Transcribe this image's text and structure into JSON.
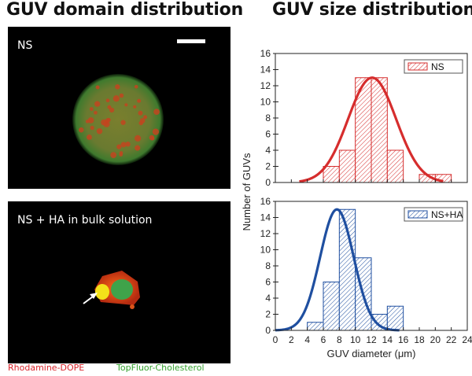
{
  "titles": {
    "left": "GUV domain distribution",
    "right": "GUV size distribution"
  },
  "micrographs": {
    "top_label": "NS",
    "bottom_label": "NS + HA in bulk solution",
    "stain_red": "Rhodamine-DOPE",
    "stain_green": "TopFluor-Cholesterol",
    "stain_red_color": "#d9232a",
    "stain_green_color": "#33a02c"
  },
  "chart_data": [
    {
      "type": "bar",
      "series": [
        {
          "name": "NS",
          "values": [
            0,
            0,
            0,
            2,
            4,
            13,
            13,
            4,
            0,
            1,
            1
          ]
        }
      ],
      "bin_edges": [
        0,
        2,
        4,
        6,
        8,
        10,
        12,
        14,
        16,
        18,
        20,
        22
      ],
      "fit": {
        "type": "gaussian",
        "center": 12.1,
        "sigma": 3.0,
        "peak": 13,
        "x_range": [
          3,
          21
        ]
      },
      "color": "#d62d2d",
      "ylim": [
        0,
        16
      ],
      "yticks": [
        0,
        2,
        4,
        6,
        8,
        10,
        12,
        14,
        16
      ],
      "legend": "top-right"
    },
    {
      "type": "bar",
      "series": [
        {
          "name": "NS+HA",
          "values": [
            0,
            0,
            1,
            6,
            15,
            9,
            2,
            3,
            0,
            0,
            0
          ]
        }
      ],
      "bin_edges": [
        0,
        2,
        4,
        6,
        8,
        10,
        12,
        14,
        16,
        18,
        20,
        22
      ],
      "fit": {
        "type": "gaussian",
        "center": 7.7,
        "sigma": 2.1,
        "peak": 15,
        "x_range": [
          0,
          15.5
        ]
      },
      "color": "#1f4fa0",
      "ylim": [
        0,
        16
      ],
      "yticks": [
        0,
        2,
        4,
        6,
        8,
        10,
        12,
        14,
        16
      ],
      "legend": "top-right"
    }
  ],
  "axes": {
    "ylabel": "Number of GUVs",
    "xlabel": "GUV diameter (μm)",
    "xlim": [
      0,
      24
    ],
    "xticks": [
      0,
      2,
      4,
      6,
      8,
      10,
      12,
      14,
      16,
      18,
      20,
      22,
      24
    ]
  }
}
